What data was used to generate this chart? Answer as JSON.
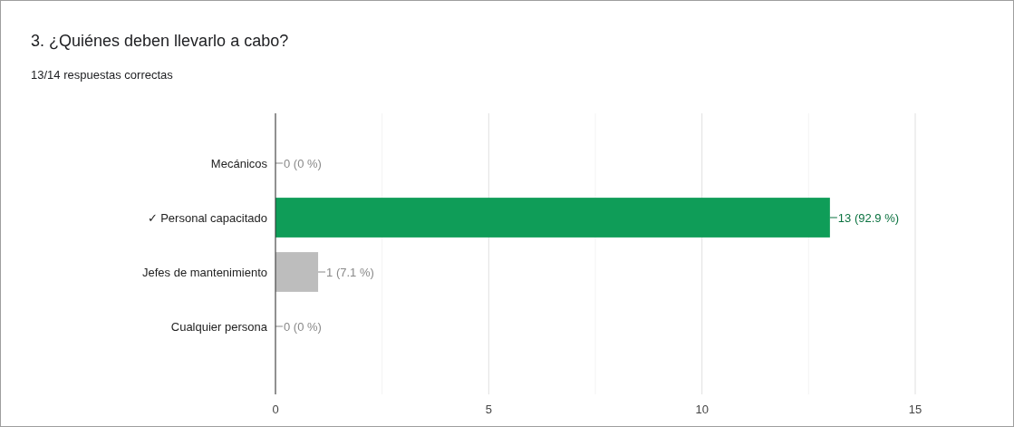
{
  "chart_data": {
    "type": "bar",
    "orientation": "horizontal",
    "title": "3. ¿Quiénes deben llevarlo a cabo?",
    "subtitle": "13/14 respuestas correctas",
    "categories": [
      "Mecánicos",
      "✓ Personal capacitado",
      "Jefes de mantenimiento",
      "Cualquier persona"
    ],
    "values": [
      0,
      13,
      1,
      0
    ],
    "colors": [
      "#bdbdbd",
      "#0f9d58",
      "#bdbdbd",
      "#bdbdbd"
    ],
    "value_labels": [
      "0 (0 %)",
      "13 (92.9 %)",
      "1 (7.1 %)",
      "0 (0 %)"
    ],
    "xlim": [
      0,
      15
    ],
    "xticks": [
      0,
      {
        "value": 2.5,
        "label": null
      },
      5,
      {
        "value": 7.5,
        "label": null
      },
      10,
      {
        "value": 12.5,
        "label": null
      },
      15
    ],
    "grid": "x"
  }
}
